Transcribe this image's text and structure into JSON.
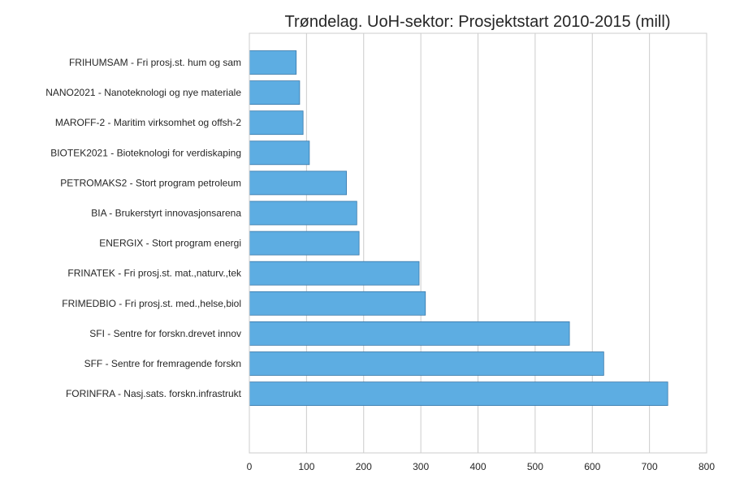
{
  "chart_data": {
    "type": "bar",
    "orientation": "horizontal",
    "title": "Trøndelag. UoH-sektor: Prosjektstart 2010-2015 (mill)",
    "xlabel": "",
    "ylabel": "",
    "xlim": [
      0,
      800
    ],
    "x_ticks": [
      0,
      100,
      200,
      300,
      400,
      500,
      600,
      700,
      800
    ],
    "grid": true,
    "bar_color": "#5DADE2",
    "bar_edge_color": "#3a78a8",
    "grid_color": "#cccccc",
    "categories": [
      "FRIHUMSAM - Fri prosj.st. hum og sam",
      "NANO2021 - Nanoteknologi og nye materiale",
      "MAROFF-2 - Maritim virksomhet og offsh-2",
      "BIOTEK2021 - Bioteknologi for verdiskaping",
      "PETROMAKS2 - Stort program petroleum",
      "BIA - Brukerstyrt innovasjonsarena",
      "ENERGIX - Stort program energi",
      "FRINATEK - Fri prosj.st. mat.,naturv.,tek",
      "FRIMEDBIO - Fri prosj.st. med.,helse,biol",
      "SFI - Sentre for forskn.drevet innov",
      "SFF - Sentre for fremragende forskn",
      "FORINFRA - Nasj.sats. forskn.infrastrukt"
    ],
    "values": [
      82,
      88,
      94,
      105,
      170,
      188,
      192,
      297,
      308,
      560,
      620,
      732
    ]
  }
}
